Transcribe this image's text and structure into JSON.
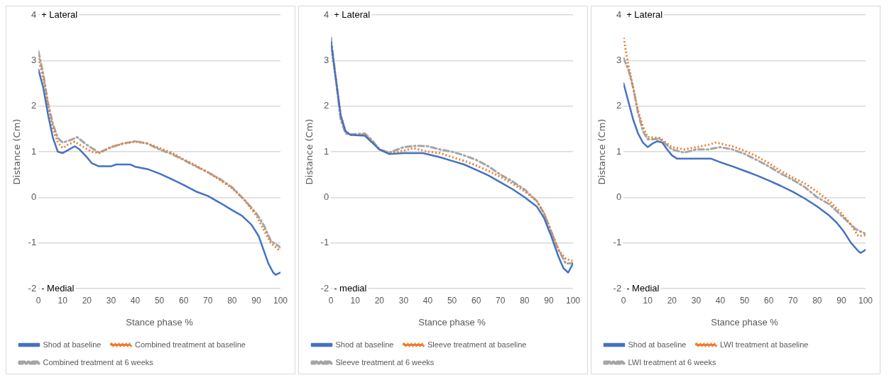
{
  "chart_data": [
    {
      "type": "line",
      "xlabel": "Stance phase %",
      "ylabel": "Distance (Cm)",
      "annotations": [
        "+ Lateral",
        "- Medial"
      ],
      "xlim": [
        0,
        100
      ],
      "xticks": [
        0,
        10,
        20,
        30,
        40,
        50,
        60,
        70,
        80,
        90,
        100
      ],
      "ylim": [
        -2,
        4
      ],
      "yticks": [
        -2,
        -1,
        0,
        1,
        2,
        3,
        4
      ],
      "grid": "y",
      "legend": "bottom",
      "marker": "none",
      "series": [
        {
          "name": "Shod at baseline",
          "color": "#4472c4",
          "line_style": "solid",
          "x": [
            0,
            2,
            4,
            6,
            8,
            10,
            12,
            15,
            17,
            20,
            22,
            25,
            30,
            32,
            38,
            40,
            45,
            50,
            55,
            60,
            65,
            70,
            75,
            80,
            84,
            88,
            91,
            93,
            95,
            97,
            98,
            100
          ],
          "values": [
            2.8,
            2.4,
            1.8,
            1.3,
            1.0,
            0.97,
            1.03,
            1.12,
            1.05,
            0.88,
            0.75,
            0.68,
            0.68,
            0.72,
            0.72,
            0.67,
            0.62,
            0.52,
            0.4,
            0.27,
            0.13,
            0.03,
            -0.12,
            -0.28,
            -0.4,
            -0.6,
            -0.85,
            -1.15,
            -1.45,
            -1.65,
            -1.7,
            -1.65
          ]
        },
        {
          "name": "Combined treatment at baseline",
          "color": "#ed7d31",
          "line_style": "dotted",
          "x": [
            0,
            2,
            4,
            6,
            8,
            10,
            12,
            15,
            18,
            22,
            25,
            30,
            35,
            40,
            45,
            50,
            55,
            60,
            65,
            70,
            75,
            80,
            85,
            90,
            93,
            96,
            100
          ],
          "values": [
            3.05,
            2.6,
            2.0,
            1.5,
            1.2,
            1.08,
            1.15,
            1.22,
            1.12,
            1.0,
            0.97,
            1.1,
            1.18,
            1.22,
            1.18,
            1.08,
            0.98,
            0.83,
            0.7,
            0.55,
            0.38,
            0.2,
            -0.05,
            -0.4,
            -0.7,
            -1.0,
            -1.18
          ]
        },
        {
          "name": "Combined treatment at 6 weeks",
          "color": "#a5a5a5",
          "line_style": "dashed",
          "x": [
            0,
            2,
            4,
            6,
            8,
            10,
            13,
            16,
            20,
            25,
            30,
            35,
            40,
            45,
            50,
            55,
            60,
            65,
            70,
            75,
            80,
            85,
            90,
            93,
            96,
            100
          ],
          "values": [
            3.2,
            2.7,
            2.05,
            1.6,
            1.3,
            1.2,
            1.25,
            1.32,
            1.15,
            0.98,
            1.1,
            1.18,
            1.23,
            1.18,
            1.05,
            0.95,
            0.82,
            0.68,
            0.55,
            0.4,
            0.22,
            -0.05,
            -0.35,
            -0.6,
            -0.95,
            -1.1
          ]
        }
      ]
    },
    {
      "type": "line",
      "xlabel": "Stance phase %",
      "ylabel": "Distance (Cm)",
      "annotations": [
        "+ Lateral",
        "- medial"
      ],
      "xlim": [
        0,
        100
      ],
      "xticks": [
        0,
        10,
        20,
        30,
        40,
        50,
        60,
        70,
        80,
        90,
        100
      ],
      "ylim": [
        -2,
        4
      ],
      "yticks": [
        -2,
        -1,
        0,
        1,
        2,
        3,
        4
      ],
      "grid": "y",
      "legend": "bottom",
      "marker": "none",
      "series": [
        {
          "name": "Shod at baseline",
          "color": "#4472c4",
          "line_style": "solid",
          "x": [
            0,
            2,
            4,
            6,
            8,
            14,
            17,
            20,
            24,
            30,
            38,
            45,
            50,
            55,
            60,
            65,
            70,
            75,
            80,
            85,
            88,
            91,
            94,
            96,
            98,
            100
          ],
          "values": [
            3.4,
            2.6,
            1.8,
            1.45,
            1.37,
            1.35,
            1.2,
            1.05,
            0.95,
            0.97,
            0.97,
            0.88,
            0.8,
            0.72,
            0.6,
            0.48,
            0.33,
            0.18,
            0.0,
            -0.2,
            -0.45,
            -0.85,
            -1.3,
            -1.55,
            -1.65,
            -1.45
          ]
        },
        {
          "name": "Sleeve treatment at baseline",
          "color": "#ed7d31",
          "line_style": "dotted",
          "x": [
            0,
            2,
            4,
            6,
            8,
            14,
            17,
            20,
            24,
            30,
            34,
            40,
            45,
            50,
            55,
            60,
            65,
            70,
            75,
            80,
            85,
            88,
            91,
            94,
            97,
            100
          ],
          "values": [
            3.3,
            2.6,
            1.8,
            1.45,
            1.37,
            1.37,
            1.22,
            1.05,
            0.97,
            1.02,
            1.08,
            1.0,
            0.97,
            0.88,
            0.8,
            0.7,
            0.58,
            0.45,
            0.3,
            0.13,
            -0.08,
            -0.35,
            -0.75,
            -1.15,
            -1.35,
            -1.4
          ]
        },
        {
          "name": "Sleeve treatment at 6 weeks",
          "color": "#a5a5a5",
          "line_style": "dashed",
          "x": [
            0,
            2,
            4,
            6,
            8,
            14,
            17,
            20,
            24,
            30,
            35,
            40,
            45,
            50,
            55,
            60,
            65,
            70,
            75,
            80,
            85,
            88,
            91,
            94,
            97,
            100
          ],
          "values": [
            3.5,
            2.6,
            1.7,
            1.4,
            1.38,
            1.4,
            1.25,
            1.05,
            0.98,
            1.1,
            1.13,
            1.12,
            1.05,
            1.0,
            0.92,
            0.82,
            0.68,
            0.5,
            0.35,
            0.17,
            -0.08,
            -0.35,
            -0.75,
            -1.15,
            -1.45,
            -1.45
          ]
        }
      ]
    },
    {
      "type": "line",
      "xlabel": "Stance phase %",
      "ylabel": "Distance (Cm)",
      "annotations": [
        "+ Lateral",
        "- Medial"
      ],
      "xlim": [
        0,
        100
      ],
      "xticks": [
        0,
        10,
        20,
        30,
        40,
        50,
        60,
        70,
        80,
        90,
        100
      ],
      "ylim": [
        -2,
        4
      ],
      "yticks": [
        -2,
        -1,
        0,
        1,
        2,
        3,
        4
      ],
      "grid": "y",
      "legend": "bottom",
      "marker": "none",
      "series": [
        {
          "name": "Shod at baseline",
          "color": "#4472c4",
          "line_style": "solid",
          "x": [
            0,
            2,
            4,
            6,
            8,
            10,
            12,
            14,
            16,
            18,
            20,
            22,
            36,
            40,
            45,
            50,
            55,
            60,
            65,
            70,
            75,
            80,
            85,
            88,
            91,
            94,
            97,
            98,
            100
          ],
          "values": [
            2.5,
            2.1,
            1.7,
            1.4,
            1.2,
            1.1,
            1.18,
            1.23,
            1.2,
            1.05,
            0.92,
            0.85,
            0.85,
            0.77,
            0.68,
            0.58,
            0.48,
            0.37,
            0.25,
            0.12,
            -0.03,
            -0.2,
            -0.4,
            -0.55,
            -0.75,
            -1.0,
            -1.18,
            -1.22,
            -1.15
          ]
        },
        {
          "name": "LWI treatment at baseline",
          "color": "#ed7d31",
          "line_style": "dotted",
          "x": [
            0,
            2,
            4,
            6,
            8,
            10,
            15,
            20,
            25,
            30,
            35,
            38,
            45,
            50,
            55,
            60,
            65,
            70,
            75,
            80,
            85,
            90,
            94,
            97,
            100
          ],
          "values": [
            3.5,
            2.9,
            2.4,
            1.9,
            1.55,
            1.32,
            1.3,
            1.1,
            1.05,
            1.1,
            1.15,
            1.2,
            1.12,
            1.02,
            0.9,
            0.75,
            0.58,
            0.43,
            0.3,
            0.12,
            -0.08,
            -0.35,
            -0.6,
            -0.85,
            -0.83
          ]
        },
        {
          "name": "LWI treatment at 6 weeks",
          "color": "#a5a5a5",
          "line_style": "dashed",
          "x": [
            0,
            2,
            4,
            6,
            8,
            10,
            15,
            20,
            25,
            30,
            35,
            40,
            45,
            50,
            55,
            60,
            65,
            70,
            75,
            80,
            85,
            90,
            93,
            96,
            100
          ],
          "values": [
            3.05,
            2.8,
            2.4,
            1.85,
            1.45,
            1.27,
            1.28,
            1.05,
            0.98,
            1.05,
            1.05,
            1.1,
            1.05,
            0.95,
            0.82,
            0.68,
            0.52,
            0.38,
            0.22,
            0.0,
            -0.15,
            -0.4,
            -0.55,
            -0.7,
            -0.8
          ]
        }
      ]
    }
  ]
}
